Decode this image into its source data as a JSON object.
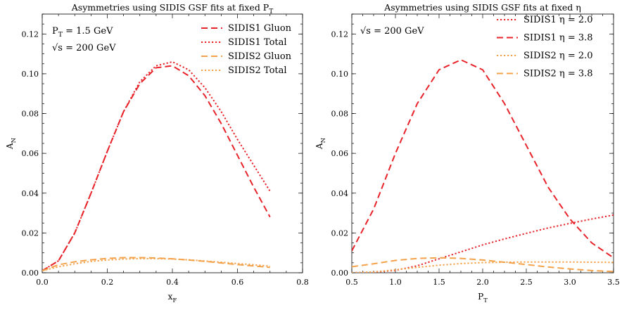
{
  "chart_data": [
    {
      "type": "line",
      "title": "Asymmetries using SIDIS GSF fits at fixed P_T",
      "xlabel": "x_F",
      "ylabel": "A_N",
      "xlim": [
        0.0,
        0.8
      ],
      "ylim": [
        0.0,
        0.13
      ],
      "xticks": [
        0.0,
        0.2,
        0.4,
        0.6,
        0.8
      ],
      "xtick_labels": [
        "0.0",
        "0.2",
        "0.4",
        "0.6",
        "0.8"
      ],
      "yticks": [
        0.0,
        0.02,
        0.04,
        0.06,
        0.08,
        0.1,
        0.12
      ],
      "ytick_labels": [
        "0.00",
        "0.02",
        "0.04",
        "0.06",
        "0.08",
        "0.10",
        "0.12"
      ],
      "grid": false,
      "legend_position": "top-right",
      "annotations": [
        "P_T = 1.5 GeV",
        "√s = 200 GeV"
      ],
      "series": [
        {
          "name": "SIDIS1 Gluon",
          "color": "#e8232a",
          "dash": "dashed",
          "x": [
            0.0,
            0.05,
            0.1,
            0.15,
            0.2,
            0.25,
            0.3,
            0.35,
            0.4,
            0.45,
            0.5,
            0.55,
            0.6,
            0.65,
            0.7
          ],
          "y": [
            0.001,
            0.006,
            0.02,
            0.04,
            0.061,
            0.081,
            0.095,
            0.103,
            0.104,
            0.099,
            0.089,
            0.075,
            0.059,
            0.043,
            0.028
          ]
        },
        {
          "name": "SIDIS1 Total",
          "color": "#e8232a",
          "dash": "dotted",
          "x": [
            0.0,
            0.05,
            0.1,
            0.15,
            0.2,
            0.25,
            0.3,
            0.35,
            0.4,
            0.45,
            0.5,
            0.55,
            0.6,
            0.65,
            0.7
          ],
          "y": [
            0.001,
            0.006,
            0.02,
            0.04,
            0.061,
            0.081,
            0.096,
            0.104,
            0.106,
            0.102,
            0.093,
            0.081,
            0.067,
            0.054,
            0.041
          ]
        },
        {
          "name": "SIDIS2 Gluon",
          "color": "#f4a24a",
          "dash": "dashed",
          "x": [
            0.0,
            0.05,
            0.1,
            0.15,
            0.2,
            0.25,
            0.3,
            0.35,
            0.4,
            0.45,
            0.5,
            0.55,
            0.6,
            0.65,
            0.7
          ],
          "y": [
            0.001,
            0.004,
            0.0055,
            0.0065,
            0.0072,
            0.0076,
            0.0076,
            0.0074,
            0.007,
            0.0064,
            0.0057,
            0.0049,
            0.0041,
            0.0034,
            0.0027
          ]
        },
        {
          "name": "SIDIS2 Total",
          "color": "#f4a24a",
          "dash": "dotted",
          "x": [
            0.0,
            0.05,
            0.1,
            0.15,
            0.2,
            0.25,
            0.3,
            0.35,
            0.4,
            0.45,
            0.5,
            0.55,
            0.6,
            0.65,
            0.7
          ],
          "y": [
            0.001,
            0.003,
            0.0045,
            0.0057,
            0.0064,
            0.0069,
            0.0071,
            0.0071,
            0.0069,
            0.0065,
            0.0059,
            0.0053,
            0.0046,
            0.004,
            0.0033
          ]
        }
      ]
    },
    {
      "type": "line",
      "title": "Asymmetries using SIDIS GSF fits at fixed η",
      "xlabel": "P_T",
      "ylabel": "A_N",
      "xlim": [
        0.5,
        3.5
      ],
      "ylim": [
        0.0,
        0.13
      ],
      "xticks": [
        0.5,
        1.0,
        1.5,
        2.0,
        2.5,
        3.0,
        3.5
      ],
      "xtick_labels": [
        "0.5",
        "1.0",
        "1.5",
        "2.0",
        "2.5",
        "3.0",
        "3.5"
      ],
      "yticks": [
        0.0,
        0.02,
        0.04,
        0.06,
        0.08,
        0.1,
        0.12
      ],
      "ytick_labels": [
        "0.00",
        "0.02",
        "0.04",
        "0.06",
        "0.08",
        "0.10",
        "0.12"
      ],
      "grid": false,
      "legend_position": "top-right",
      "annotations": [
        "√s = 200 GeV"
      ],
      "series": [
        {
          "name": "SIDIS1 η = 2.0",
          "color": "#e8232a",
          "dash": "dotted",
          "x": [
            0.5,
            0.75,
            1.0,
            1.25,
            1.5,
            1.75,
            2.0,
            2.25,
            2.5,
            2.75,
            3.0,
            3.25,
            3.5
          ],
          "y": [
            0.0,
            0.0003,
            0.0012,
            0.0035,
            0.007,
            0.0105,
            0.014,
            0.017,
            0.0198,
            0.0225,
            0.0248,
            0.027,
            0.029
          ]
        },
        {
          "name": "SIDIS1 η = 3.8",
          "color": "#e8232a",
          "dash": "dashed",
          "x": [
            0.5,
            0.75,
            1.0,
            1.25,
            1.5,
            1.75,
            2.0,
            2.25,
            2.5,
            2.75,
            3.0,
            3.25,
            3.5
          ],
          "y": [
            0.011,
            0.032,
            0.06,
            0.085,
            0.102,
            0.107,
            0.102,
            0.085,
            0.064,
            0.043,
            0.027,
            0.015,
            0.0075
          ]
        },
        {
          "name": "SIDIS2 η = 2.0",
          "color": "#f4a24a",
          "dash": "dotted",
          "x": [
            0.5,
            0.75,
            1.0,
            1.25,
            1.5,
            1.75,
            2.0,
            2.25,
            2.5,
            2.75,
            3.0,
            3.25,
            3.5
          ],
          "y": [
            0.0,
            0.0004,
            0.0015,
            0.0027,
            0.0038,
            0.0046,
            0.0051,
            0.0053,
            0.0054,
            0.0054,
            0.0054,
            0.0053,
            0.0052
          ]
        },
        {
          "name": "SIDIS2 η = 3.8",
          "color": "#f4a24a",
          "dash": "dashed",
          "x": [
            0.5,
            0.75,
            1.0,
            1.25,
            1.5,
            1.75,
            2.0,
            2.25,
            2.5,
            2.75,
            3.0,
            3.25,
            3.5
          ],
          "y": [
            0.003,
            0.0045,
            0.0062,
            0.0072,
            0.0075,
            0.0072,
            0.0064,
            0.0053,
            0.0041,
            0.0029,
            0.0019,
            0.0011,
            0.0006
          ]
        }
      ]
    }
  ]
}
